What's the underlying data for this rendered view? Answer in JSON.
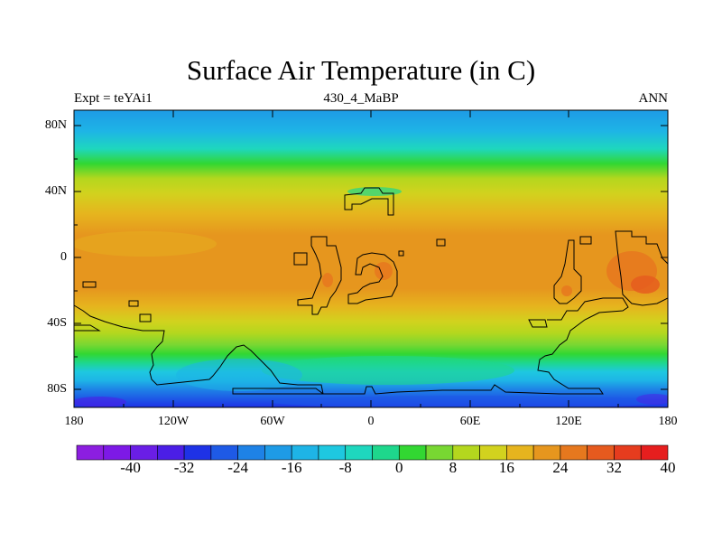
{
  "title": "Surface Air Temperature (in C)",
  "subtitle_left": "Expt = teYAi1",
  "subtitle_center": "430_4_MaBP",
  "subtitle_right": "ANN",
  "lat_labels": [
    "80N",
    "40N",
    "0",
    "40S",
    "80S"
  ],
  "lon_labels": [
    "180",
    "120W",
    "60W",
    "0",
    "60E",
    "120E",
    "180"
  ],
  "colorbar": {
    "labels": [
      "-40",
      "-32",
      "-24",
      "-16",
      "-8",
      "0",
      "8",
      "16",
      "24",
      "32",
      "40"
    ],
    "colors": [
      "#8c1ee0",
      "#7d19e6",
      "#6a1ee6",
      "#4b1ee6",
      "#1e32e6",
      "#1e5ae6",
      "#1e82e6",
      "#1e9be6",
      "#1eb4e6",
      "#1ec8e0",
      "#1ed7be",
      "#1ed78c",
      "#32d732",
      "#78d732",
      "#b4d71e",
      "#d2d21e",
      "#e6b41e",
      "#e6961e",
      "#e6781e",
      "#e65a1e",
      "#e63c1e",
      "#e61e1e"
    ]
  },
  "map": {
    "projection": "cylindrical equidistant",
    "lon_range": [
      -180,
      180
    ],
    "lat_range": [
      -90,
      90
    ],
    "field": "surface air temperature",
    "units": "C"
  }
}
